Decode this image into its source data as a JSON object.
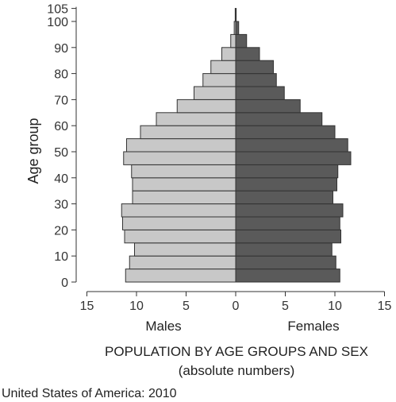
{
  "chart_data": {
    "type": "bar",
    "title": "POPULATION BY AGE GROUPS AND SEX",
    "subtitle": "(absolute numbers)",
    "source": "United States of America: 2010",
    "ylabel": "Age group",
    "xlabel_left": "Males",
    "xlabel_right": "Females",
    "x_ticks": [
      15,
      10,
      5,
      0,
      5,
      10,
      15
    ],
    "x_tick_labels": [
      "15",
      "10",
      "5",
      "0",
      "5",
      "10",
      "15"
    ],
    "xlim": [
      -15,
      15
    ],
    "y_ticks": [
      0,
      10,
      20,
      30,
      40,
      50,
      60,
      70,
      80,
      90,
      100,
      105
    ],
    "y_tick_labels": [
      "0",
      "10",
      "20",
      "30",
      "40",
      "50",
      "60",
      "70",
      "80",
      "90",
      "100",
      "105"
    ],
    "categories": [
      "0-4",
      "5-9",
      "10-14",
      "15-19",
      "20-24",
      "25-29",
      "30-34",
      "35-39",
      "40-44",
      "45-49",
      "50-54",
      "55-59",
      "60-64",
      "65-69",
      "70-74",
      "75-79",
      "80-84",
      "85-89",
      "90-94",
      "95-99",
      "100+"
    ],
    "series": [
      {
        "name": "Males",
        "color": "#c8c8c8",
        "values": [
          11.1,
          10.7,
          10.2,
          11.2,
          11.4,
          11.5,
          10.4,
          10.4,
          10.5,
          11.3,
          11.0,
          9.6,
          8.0,
          5.9,
          4.2,
          3.3,
          2.5,
          1.4,
          0.5,
          0.15,
          0.05
        ]
      },
      {
        "name": "Females",
        "color": "#5a5a5a",
        "values": [
          10.5,
          10.1,
          9.7,
          10.6,
          10.5,
          10.8,
          9.8,
          10.2,
          10.3,
          11.6,
          11.3,
          10.0,
          8.7,
          6.5,
          4.9,
          4.1,
          3.8,
          2.4,
          1.1,
          0.3,
          0.05
        ]
      }
    ]
  }
}
